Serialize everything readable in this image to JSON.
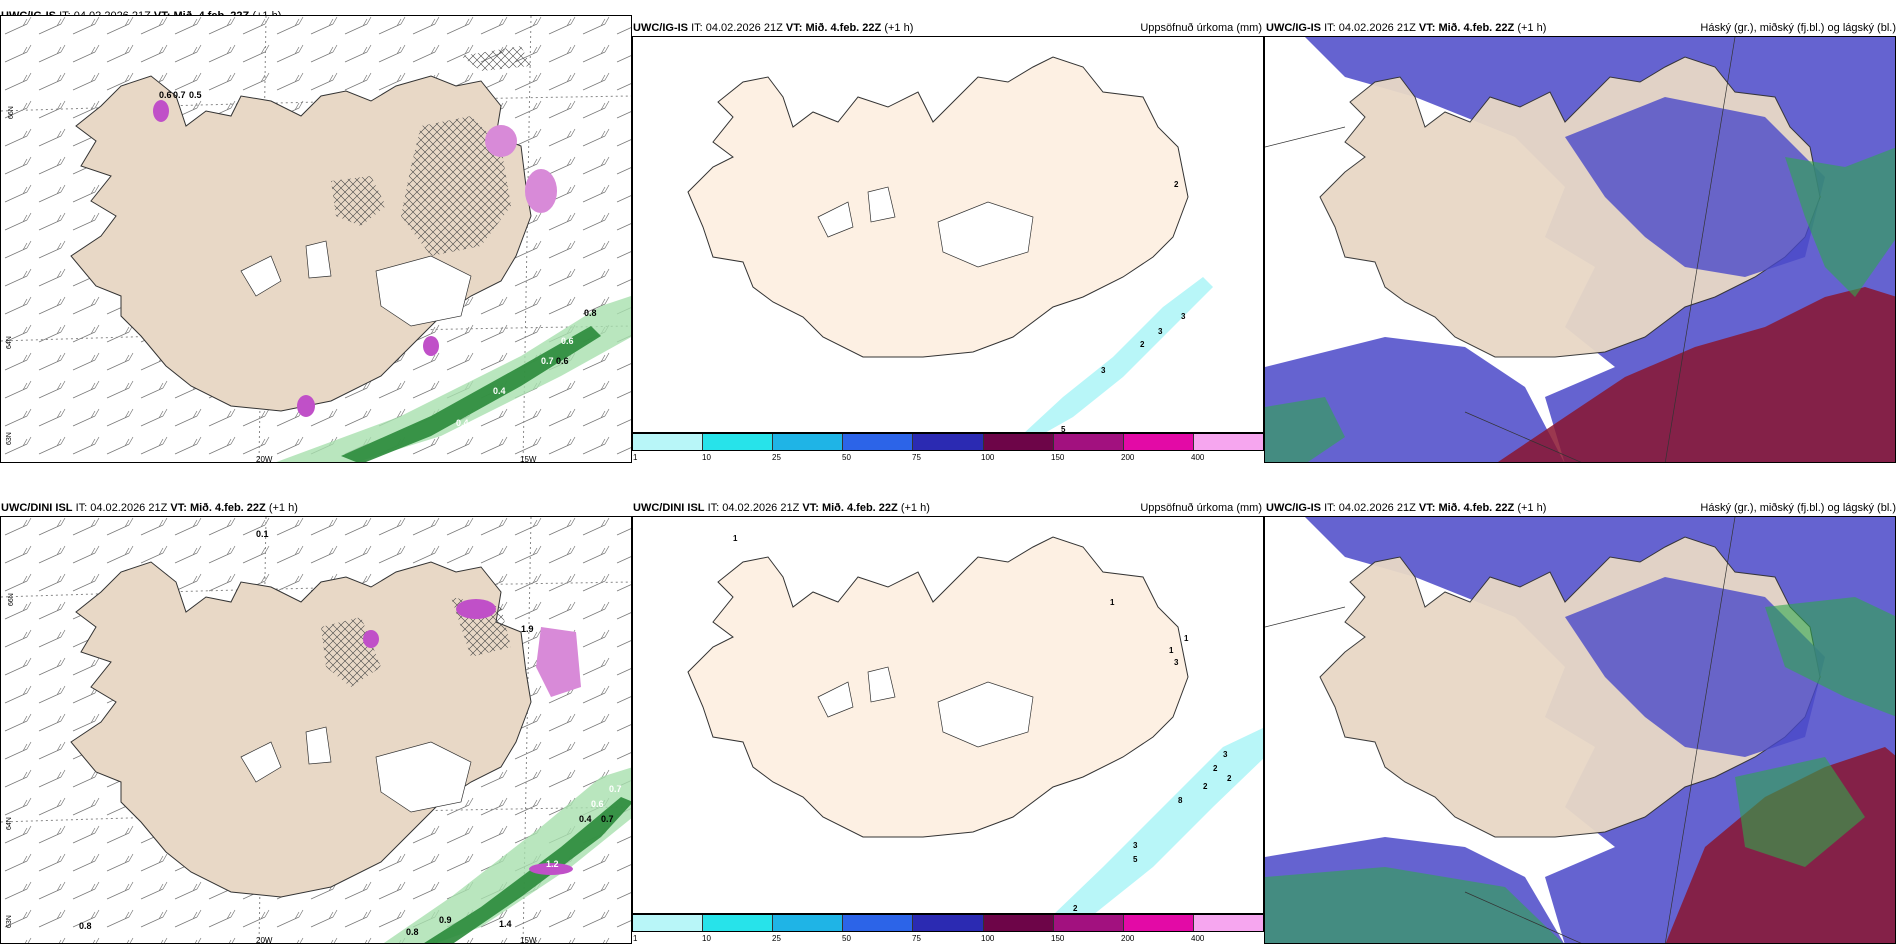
{
  "panels": {
    "p1": {
      "model": "UWC/IG-IS",
      "it_label": "IT:",
      "it_value": "04.02.2026 21Z",
      "vt_label": "VT:",
      "vt_value": "Mið. 4.feb. 22Z",
      "lead": "(+1 h)"
    },
    "p2": {
      "model": "UWC/IG-IS",
      "it_label": "IT:",
      "it_value": "04.02.2026 21Z",
      "vt_label": "VT:",
      "vt_value": "Mið. 4.feb. 22Z",
      "lead": "(+1 h)",
      "right_title": "Uppsöfnuð úrkoma (mm)"
    },
    "p3": {
      "model": "UWC/IG-IS",
      "it_label": "IT:",
      "it_value": "04.02.2026 21Z",
      "vt_label": "VT:",
      "vt_value": "Mið. 4.feb. 22Z",
      "lead": "(+1 h)",
      "right_title": "Háský (gr.), miðský (fj.bl.) og lágský (bl.)"
    },
    "p4": {
      "model": "UWC/DINI ISL",
      "it_label": "IT:",
      "it_value": "04.02.2026 21Z",
      "vt_label": "VT:",
      "vt_value": "Mið. 4.feb. 22Z",
      "lead": "(+1 h)"
    },
    "p5": {
      "model": "UWC/DINI ISL",
      "it_label": "IT:",
      "it_value": "04.02.2026 21Z",
      "vt_label": "VT:",
      "vt_value": "Mið. 4.feb. 22Z",
      "lead": "(+1 h)",
      "right_title": "Uppsöfnuð úrkoma (mm)"
    },
    "p6": {
      "model": "UWC/IG-IS",
      "it_label": "IT:",
      "it_value": "04.02.2026 21Z",
      "vt_label": "VT:",
      "vt_value": "Mið. 4.feb. 22Z",
      "lead": "(+1 h)",
      "right_title": "Háský (gr.), miðský (fj.bl.) og lágský (bl.)"
    }
  },
  "axis_labels": {
    "lat_66": "66N",
    "lat_64": "64N",
    "lat_63": "63N",
    "lon_20": "20W",
    "lon_15": "15W"
  },
  "colorbar": {
    "colors": [
      "#b8f6f8",
      "#27e3ea",
      "#1fb4e6",
      "#2c64e8",
      "#2b2ab2",
      "#6d0548",
      "#a2117f",
      "#e30aa6",
      "#f6a6ef"
    ],
    "ticks": [
      "1",
      "10",
      "25",
      "50",
      "75",
      "100",
      "150",
      "200",
      "400"
    ]
  },
  "precip_labels_top": {
    "a": "2",
    "b": "3",
    "c": "3",
    "d": "2",
    "e": "3",
    "f": "5"
  },
  "precip_labels_bottom": {
    "a": "1",
    "b": "1",
    "c": "1",
    "d": "1",
    "e": "3",
    "f": "3",
    "g": "2",
    "h": "2",
    "i": "2",
    "j": "8",
    "k": "3",
    "l": "5",
    "m": "2"
  },
  "rate_labels_top": {
    "a": "0.6",
    "b": "0.7",
    "c": "0.5",
    "d": "0.8",
    "e": "0.6",
    "f": "0.7",
    "g": "0.6",
    "h": "0.4",
    "i": "0.4"
  },
  "rate_labels_bottom": {
    "a": "0.1",
    "b": "1.9",
    "c": "0.7",
    "d": "0.6",
    "e": "0.4",
    "f": "0.7",
    "g": "1.2",
    "h": "0.8",
    "i": "0.9",
    "j": "1.4",
    "k": "0.8"
  },
  "colors": {
    "land": "#e8d8c6",
    "land_plain": "#fdf0e3",
    "sea": "#ffffff",
    "hatch": "#444444",
    "green": "#2fa84c",
    "pink": "#c050c8",
    "blue_cloud": "#4a48c8",
    "red_cloud": "#8a1530"
  }
}
